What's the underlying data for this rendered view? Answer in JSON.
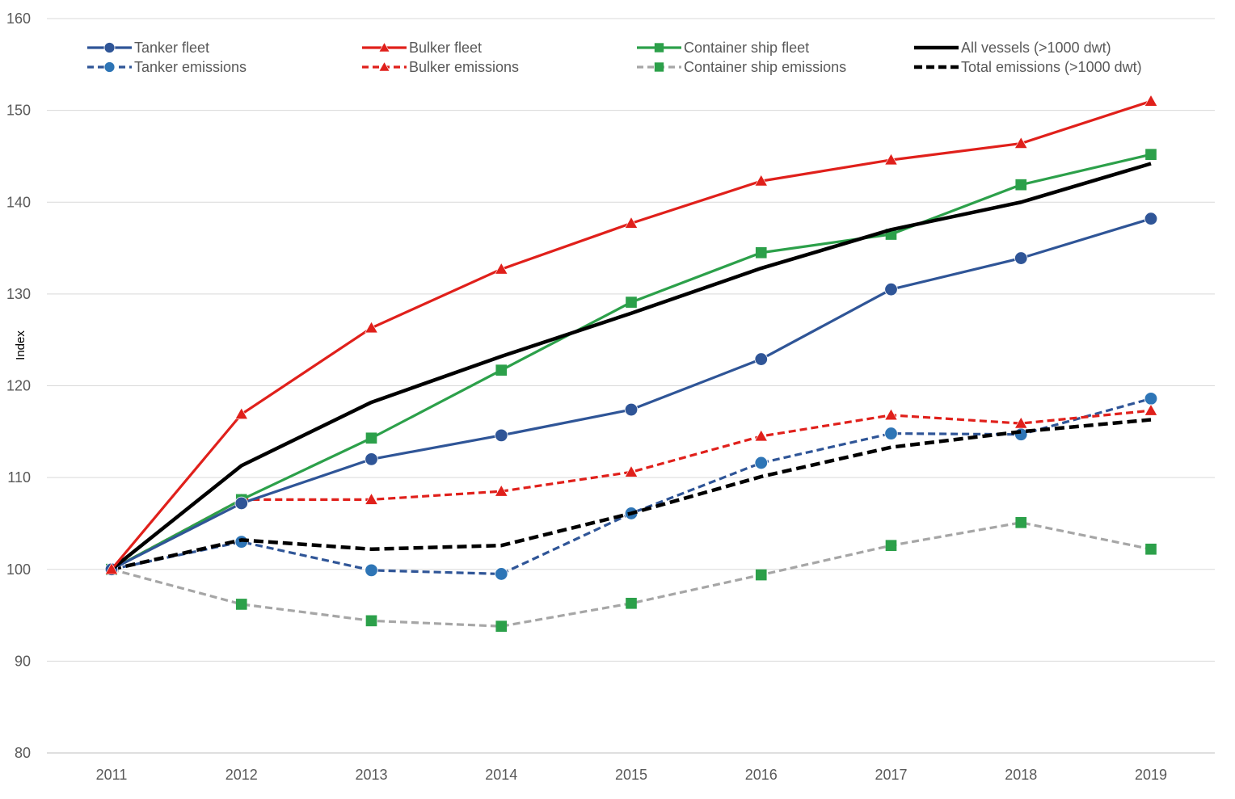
{
  "chart_data": {
    "type": "line",
    "title": "",
    "xlabel": "",
    "ylabel": "Index",
    "x": [
      "2011",
      "2012",
      "2013",
      "2014",
      "2015",
      "2016",
      "2017",
      "2018",
      "2019"
    ],
    "ylim": [
      80,
      160
    ],
    "yticks": [
      80,
      90,
      100,
      110,
      120,
      130,
      140,
      150,
      160
    ],
    "grid": "horizontal",
    "legend_position": "top",
    "series": [
      {
        "name": "Tanker fleet",
        "style": "solid",
        "marker": "circle",
        "color": "#2f5597",
        "values": [
          100,
          107.2,
          112,
          114.6,
          117.4,
          122.9,
          130.5,
          133.9,
          138.2
        ]
      },
      {
        "name": "Bulker fleet",
        "style": "solid",
        "marker": "triangle",
        "color": "#e0201b",
        "values": [
          100,
          116.9,
          126.3,
          132.7,
          137.7,
          142.3,
          144.6,
          146.4,
          151
        ]
      },
      {
        "name": "Container ship fleet",
        "style": "solid",
        "marker": "square",
        "color": "#2ca04a",
        "values": [
          100,
          107.6,
          114.3,
          121.7,
          129.1,
          134.5,
          136.5,
          141.9,
          145.2
        ]
      },
      {
        "name": "All vessels (>1000 dwt)",
        "style": "solid",
        "marker": "none",
        "color": "#000000",
        "values": [
          100,
          111.3,
          118.2,
          123.2,
          127.9,
          132.8,
          137,
          140,
          144.2
        ]
      },
      {
        "name": "Tanker emissions",
        "style": "dashed",
        "marker": "circle",
        "color": "#2f5597",
        "marker_color": "#2e75b6",
        "values": [
          100,
          103,
          99.9,
          99.5,
          106.1,
          111.6,
          114.8,
          114.7,
          118.6
        ]
      },
      {
        "name": "Bulker emissions",
        "style": "dashed",
        "marker": "triangle",
        "color": "#e0201b",
        "values": [
          100,
          107.6,
          107.6,
          108.5,
          110.6,
          114.5,
          116.8,
          115.9,
          117.3
        ]
      },
      {
        "name": "Container ship emissions",
        "style": "dashed",
        "marker": "square",
        "color": "#a6a6a6",
        "marker_color": "#2ca04a",
        "values": [
          100,
          96.2,
          94.4,
          93.8,
          96.3,
          99.4,
          102.6,
          105.1,
          102.2
        ]
      },
      {
        "name": "Total emissions (>1000 dwt)",
        "style": "dashed",
        "marker": "none",
        "color": "#000000",
        "values": [
          100,
          103.2,
          102.2,
          102.6,
          106.1,
          110.1,
          113.3,
          115,
          116.3
        ]
      }
    ]
  }
}
